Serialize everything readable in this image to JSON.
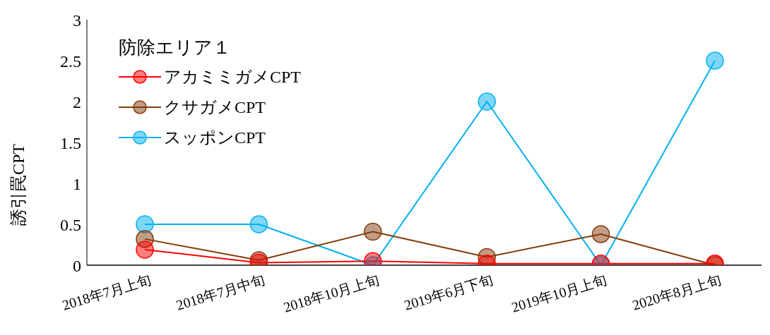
{
  "chart_data": {
    "type": "line",
    "legend_title": "防除エリア１",
    "ylabel": "誘引罠CPT",
    "categories": [
      "2018年7月上旬",
      "2018年7月中旬",
      "2018年10月上旬",
      "2019年6月下旬",
      "2019年10月上旬",
      "2020年8月上旬"
    ],
    "series": [
      {
        "name": "アカミミガメCPT",
        "color": "#ff0000",
        "values": [
          0.19,
          0.03,
          0.05,
          0.02,
          0.02,
          0.02
        ]
      },
      {
        "name": "クサガメCPT",
        "color": "#843c0c",
        "values": [
          0.32,
          0.06,
          0.41,
          0.1,
          0.38,
          0
        ]
      },
      {
        "name": "スッポンCPT",
        "color": "#00b0f0",
        "values": [
          0.5,
          0.5,
          0,
          2,
          0,
          2.5
        ]
      }
    ],
    "ylim": [
      0,
      3
    ],
    "yticks": [
      0,
      0.5,
      1,
      1.5,
      2,
      2.5,
      3
    ],
    "grid": false,
    "legend": "top left",
    "marker": "circle",
    "line_style": "solid"
  }
}
